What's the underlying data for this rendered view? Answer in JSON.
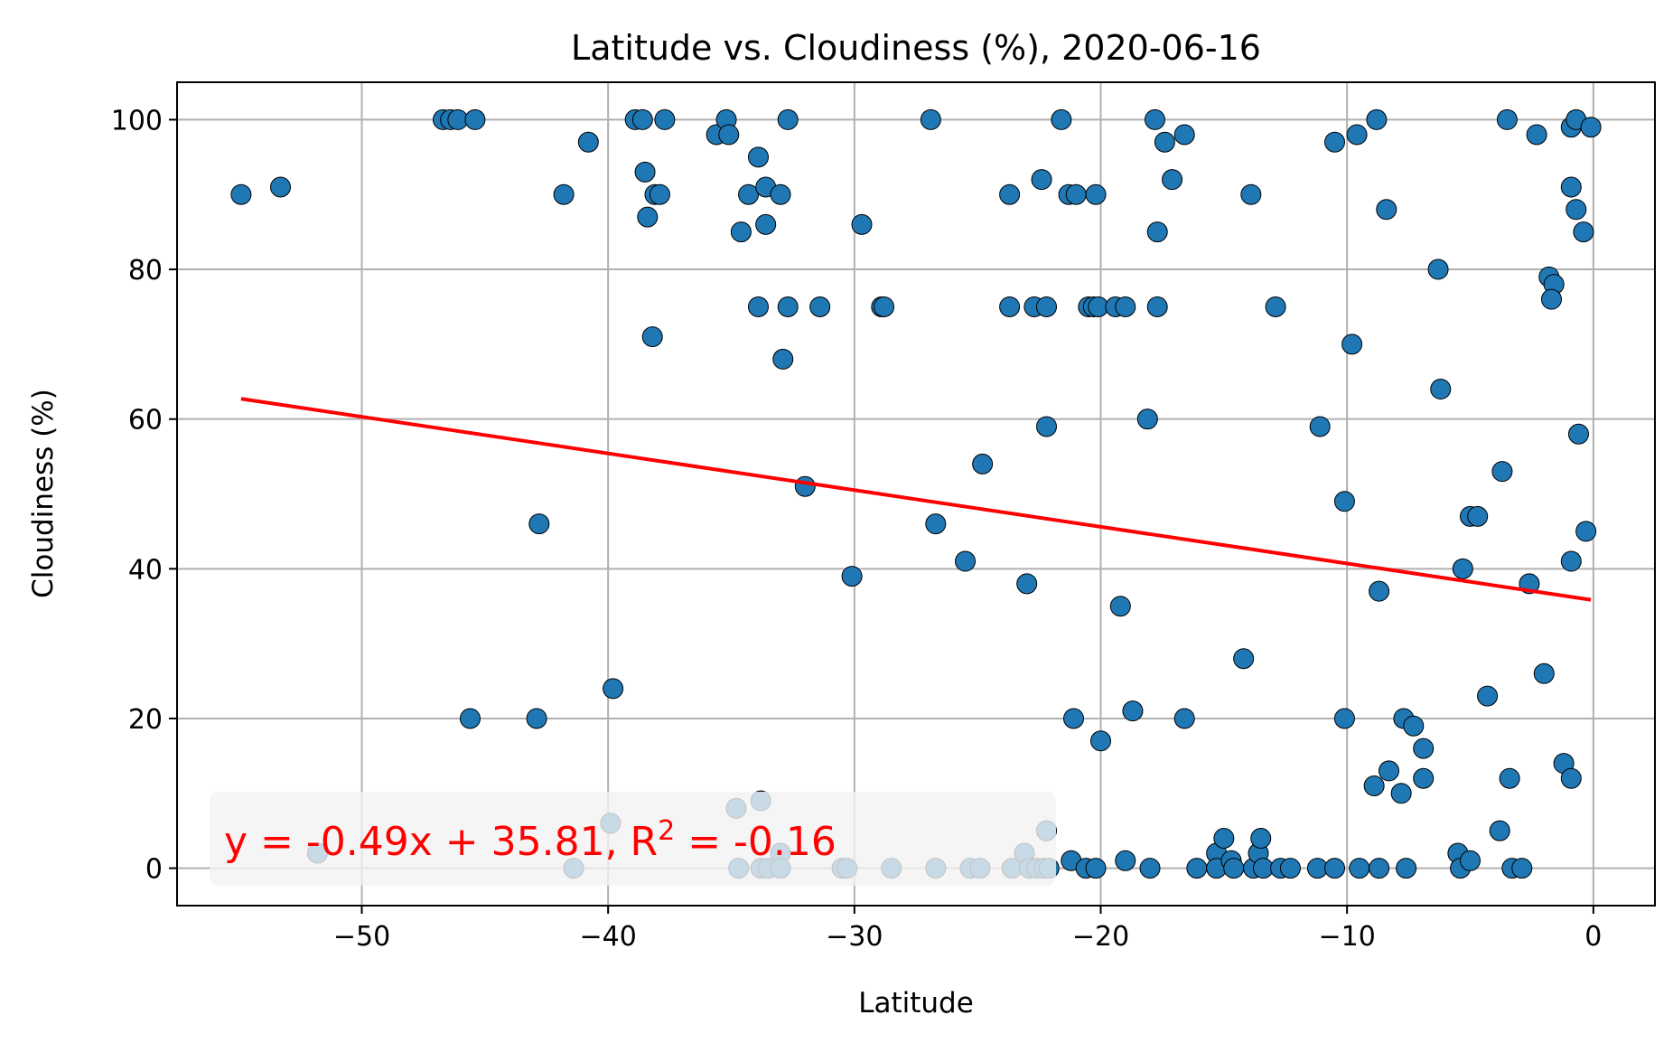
{
  "chart_data": {
    "type": "scatter",
    "title": "Latitude vs. Cloudiness (%), 2020-06-16",
    "xlabel": "Latitude",
    "ylabel": "Cloudiness (%)",
    "xlim": [
      -57.5,
      2.5
    ],
    "ylim": [
      -5,
      105
    ],
    "xticks": [
      -50,
      -40,
      -30,
      -20,
      -10,
      0
    ],
    "yticks": [
      0,
      20,
      40,
      60,
      80,
      100
    ],
    "xtick_labels": [
      "−50",
      "−40",
      "−30",
      "−20",
      "−10",
      "0"
    ],
    "ytick_labels": [
      "0",
      "20",
      "40",
      "60",
      "80",
      "100"
    ],
    "grid": true,
    "point_color": "#1f77b4",
    "line_color": "#ff0000",
    "regression": {
      "slope": -0.49,
      "intercept": 35.81,
      "x_range": [
        -54.9,
        -0.1
      ]
    },
    "annotation": "y = -0.49x + 35.81, R<sup>2</sup> = -0.16",
    "points": [
      [
        -54.9,
        90
      ],
      [
        -53.3,
        91
      ],
      [
        -51.8,
        2
      ],
      [
        -46.7,
        100
      ],
      [
        -46.4,
        100
      ],
      [
        -46.1,
        100
      ],
      [
        -45.4,
        100
      ],
      [
        -45.6,
        20
      ],
      [
        -42.8,
        46
      ],
      [
        -42.9,
        20
      ],
      [
        -41.8,
        90
      ],
      [
        -41.4,
        0
      ],
      [
        -40.8,
        97
      ],
      [
        -39.9,
        6
      ],
      [
        -39.8,
        24
      ],
      [
        -38.9,
        100
      ],
      [
        -38.6,
        100
      ],
      [
        -38.5,
        93
      ],
      [
        -38.4,
        87
      ],
      [
        -38.2,
        71
      ],
      [
        -38.1,
        90
      ],
      [
        -37.9,
        90
      ],
      [
        -37.7,
        100
      ],
      [
        -35.6,
        98
      ],
      [
        -35.2,
        100
      ],
      [
        -35.1,
        98
      ],
      [
        -34.8,
        8
      ],
      [
        -34.7,
        0
      ],
      [
        -34.6,
        85
      ],
      [
        -34.3,
        90
      ],
      [
        -33.9,
        95
      ],
      [
        -33.9,
        75
      ],
      [
        -33.8,
        9
      ],
      [
        -33.8,
        0
      ],
      [
        -33.6,
        91
      ],
      [
        -33.6,
        86
      ],
      [
        -33.5,
        0
      ],
      [
        -33.0,
        90
      ],
      [
        -33.0,
        2
      ],
      [
        -33.0,
        0
      ],
      [
        -32.9,
        68
      ],
      [
        -32.7,
        100
      ],
      [
        -32.7,
        75
      ],
      [
        -32.0,
        51
      ],
      [
        -31.4,
        75
      ],
      [
        -30.5,
        0
      ],
      [
        -30.3,
        0
      ],
      [
        -30.1,
        39
      ],
      [
        -29.7,
        86
      ],
      [
        -28.9,
        75
      ],
      [
        -28.8,
        75
      ],
      [
        -28.5,
        0
      ],
      [
        -26.9,
        100
      ],
      [
        -26.7,
        46
      ],
      [
        -26.7,
        0
      ],
      [
        -25.5,
        41
      ],
      [
        -25.3,
        0
      ],
      [
        -24.9,
        0
      ],
      [
        -24.8,
        54
      ],
      [
        -23.7,
        90
      ],
      [
        -23.7,
        75
      ],
      [
        -23.6,
        0
      ],
      [
        -23.1,
        2
      ],
      [
        -23.0,
        38
      ],
      [
        -22.9,
        0
      ],
      [
        -22.7,
        75
      ],
      [
        -22.6,
        0
      ],
      [
        -22.4,
        92
      ],
      [
        -22.3,
        0
      ],
      [
        -22.2,
        75
      ],
      [
        -22.2,
        59
      ],
      [
        -22.2,
        5
      ],
      [
        -22.1,
        0
      ],
      [
        -21.6,
        100
      ],
      [
        -21.3,
        90
      ],
      [
        -21.2,
        1
      ],
      [
        -21.1,
        20
      ],
      [
        -21.0,
        90
      ],
      [
        -20.6,
        0
      ],
      [
        -20.5,
        75
      ],
      [
        -20.3,
        75
      ],
      [
        -20.2,
        0
      ],
      [
        -20.2,
        90
      ],
      [
        -20.1,
        75
      ],
      [
        -20.0,
        17
      ],
      [
        -19.4,
        75
      ],
      [
        -19.2,
        35
      ],
      [
        -19.0,
        75
      ],
      [
        -19.0,
        1
      ],
      [
        -18.7,
        21
      ],
      [
        -18.1,
        60
      ],
      [
        -18.0,
        0
      ],
      [
        -17.8,
        100
      ],
      [
        -17.7,
        85
      ],
      [
        -17.7,
        75
      ],
      [
        -17.4,
        97
      ],
      [
        -17.1,
        92
      ],
      [
        -16.6,
        98
      ],
      [
        -16.6,
        20
      ],
      [
        -16.1,
        0
      ],
      [
        -15.3,
        2
      ],
      [
        -15.3,
        0
      ],
      [
        -15.0,
        4
      ],
      [
        -14.7,
        1
      ],
      [
        -14.6,
        0
      ],
      [
        -14.2,
        28
      ],
      [
        -13.9,
        90
      ],
      [
        -13.8,
        0
      ],
      [
        -13.6,
        2
      ],
      [
        -13.5,
        4
      ],
      [
        -13.4,
        0
      ],
      [
        -12.9,
        75
      ],
      [
        -12.7,
        0
      ],
      [
        -12.3,
        0
      ],
      [
        -11.2,
        0
      ],
      [
        -11.1,
        59
      ],
      [
        -10.5,
        97
      ],
      [
        -10.5,
        0
      ],
      [
        -10.1,
        49
      ],
      [
        -10.1,
        20
      ],
      [
        -9.8,
        70
      ],
      [
        -9.6,
        98
      ],
      [
        -9.5,
        0
      ],
      [
        -8.9,
        11
      ],
      [
        -8.8,
        100
      ],
      [
        -8.7,
        0
      ],
      [
        -8.7,
        37
      ],
      [
        -8.4,
        88
      ],
      [
        -8.3,
        13
      ],
      [
        -7.8,
        10
      ],
      [
        -7.7,
        20
      ],
      [
        -7.6,
        0
      ],
      [
        -7.3,
        19
      ],
      [
        -6.9,
        16
      ],
      [
        -6.9,
        12
      ],
      [
        -6.3,
        80
      ],
      [
        -6.2,
        64
      ],
      [
        -5.5,
        2
      ],
      [
        -5.4,
        0
      ],
      [
        -5.3,
        40
      ],
      [
        -5.0,
        47
      ],
      [
        -5.0,
        1
      ],
      [
        -4.7,
        47
      ],
      [
        -4.3,
        23
      ],
      [
        -3.8,
        5
      ],
      [
        -3.7,
        53
      ],
      [
        -3.5,
        100
      ],
      [
        -3.4,
        12
      ],
      [
        -3.3,
        0
      ],
      [
        -2.9,
        0
      ],
      [
        -2.6,
        38
      ],
      [
        -2.3,
        98
      ],
      [
        -2.0,
        26
      ],
      [
        -1.8,
        79
      ],
      [
        -1.6,
        78
      ],
      [
        -1.7,
        76
      ],
      [
        -1.2,
        14
      ],
      [
        -0.9,
        12
      ],
      [
        -0.9,
        41
      ],
      [
        -0.9,
        99
      ],
      [
        -0.9,
        91
      ],
      [
        -0.7,
        100
      ],
      [
        -0.7,
        88
      ],
      [
        -0.6,
        58
      ],
      [
        -0.4,
        85
      ],
      [
        -0.3,
        45
      ],
      [
        -0.1,
        99
      ]
    ]
  }
}
